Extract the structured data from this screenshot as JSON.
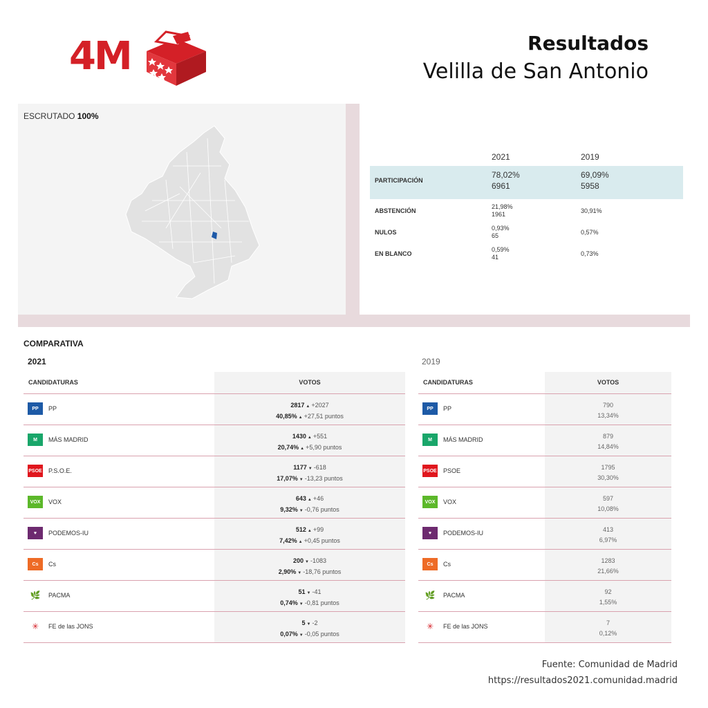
{
  "header": {
    "logo_text": "4M",
    "title": "Resultados",
    "subtitle": "Velilla de San Antonio"
  },
  "colors": {
    "brand_red": "#d42027",
    "accent_pink": "#d9a1ae",
    "highlight": "#d9ebee",
    "marker_blue": "#1f5aa8"
  },
  "map_panel": {
    "escrutado_label": "ESCRUTADO",
    "escrutado_value": "100%",
    "map_icon": "madrid-region-map"
  },
  "participation": {
    "years": [
      "2021",
      "2019"
    ],
    "rows": [
      {
        "label": "PARTICIPACIÓN",
        "v2021_pct": "78,02%",
        "v2021_n": "6961",
        "v2019_pct": "69,09%",
        "v2019_n": "5958"
      },
      {
        "label": "ABSTENCIÓN",
        "v2021_pct": "21,98%",
        "v2021_n": "1961",
        "v2019_pct": "30,91%"
      },
      {
        "label": "NULOS",
        "v2021_pct": "0,93%",
        "v2021_n": "65",
        "v2019_pct": "0,57%"
      },
      {
        "label": "EN BLANCO",
        "v2021_pct": "0,59%",
        "v2021_n": "41",
        "v2019_pct": "0,73%"
      }
    ]
  },
  "comparativa": {
    "title": "COMPARATIVA",
    "year_a": "2021",
    "year_b": "2019",
    "col_candidaturas": "CANDIDATURAS",
    "col_votos": "VOTOS",
    "t2021": [
      {
        "name": "PP",
        "logo": "pp-logo",
        "votes": "2817",
        "vdelta": "+2027",
        "vdir": "up",
        "pct": "40,85%",
        "pdelta": "+27,51 puntos",
        "pdir": "up"
      },
      {
        "name": "MÁS MADRID",
        "logo": "mas-madrid-logo",
        "votes": "1430",
        "vdelta": "+551",
        "vdir": "up",
        "pct": "20,74%",
        "pdelta": "+5,90 puntos",
        "pdir": "up"
      },
      {
        "name": "P.S.O.E.",
        "logo": "psoe-logo",
        "votes": "1177",
        "vdelta": "-618",
        "vdir": "down",
        "pct": "17,07%",
        "pdelta": "-13,23 puntos",
        "pdir": "down"
      },
      {
        "name": "VOX",
        "logo": "vox-logo",
        "votes": "643",
        "vdelta": "+46",
        "vdir": "up",
        "pct": "9,32%",
        "pdelta": "-0,76 puntos",
        "pdir": "down"
      },
      {
        "name": "PODEMOS-IU",
        "logo": "podemos-logo",
        "votes": "512",
        "vdelta": "+99",
        "vdir": "up",
        "pct": "7,42%",
        "pdelta": "+0,45 puntos",
        "pdir": "up"
      },
      {
        "name": "Cs",
        "logo": "cs-logo",
        "votes": "200",
        "vdelta": "-1083",
        "vdir": "down",
        "pct": "2,90%",
        "pdelta": "-18,76 puntos",
        "pdir": "down"
      },
      {
        "name": "PACMA",
        "logo": "pacma-logo",
        "votes": "51",
        "vdelta": "-41",
        "vdir": "down",
        "pct": "0,74%",
        "pdelta": "-0,81 puntos",
        "pdir": "down"
      },
      {
        "name": "FE de las JONS",
        "logo": "fe-jons-logo",
        "votes": "5",
        "vdelta": "-2",
        "vdir": "down",
        "pct": "0,07%",
        "pdelta": "-0,05 puntos",
        "pdir": "down"
      }
    ],
    "t2019": [
      {
        "name": "PP",
        "logo": "pp-logo",
        "votes": "790",
        "pct": "13,34%"
      },
      {
        "name": "MÁS MADRID",
        "logo": "mas-madrid-logo",
        "votes": "879",
        "pct": "14,84%"
      },
      {
        "name": "PSOE",
        "logo": "psoe-logo",
        "votes": "1795",
        "pct": "30,30%"
      },
      {
        "name": "VOX",
        "logo": "vox-logo",
        "votes": "597",
        "pct": "10,08%"
      },
      {
        "name": "PODEMOS-IU",
        "logo": "podemos-logo",
        "votes": "413",
        "pct": "6,97%"
      },
      {
        "name": "Cs",
        "logo": "cs-logo",
        "votes": "1283",
        "pct": "21,66%"
      },
      {
        "name": "PACMA",
        "logo": "pacma-logo",
        "votes": "92",
        "pct": "1,55%"
      },
      {
        "name": "FE de las JONS",
        "logo": "fe-jons-logo",
        "votes": "7",
        "pct": "0,12%"
      }
    ]
  },
  "logos": {
    "pp-logo": {
      "bg": "#1d5aa6",
      "text": "PP"
    },
    "mas-madrid-logo": {
      "bg": "#19a66a",
      "text": "M"
    },
    "psoe-logo": {
      "bg": "#e0161d",
      "text": "PSOE"
    },
    "vox-logo": {
      "bg": "#5cb82a",
      "text": "VOX"
    },
    "podemos-logo": {
      "bg": "#6d2a6f",
      "text": "♥"
    },
    "cs-logo": {
      "bg": "#ee6b26",
      "text": "Cs"
    },
    "pacma-logo": {
      "bg": "#ffffff",
      "text": "🌿"
    },
    "fe-jons-logo": {
      "bg": "#ffffff",
      "text": "✳"
    }
  },
  "footer": {
    "source": "Fuente: Comunidad de Madrid",
    "url": "https://resultados2021.comunidad.madrid"
  }
}
